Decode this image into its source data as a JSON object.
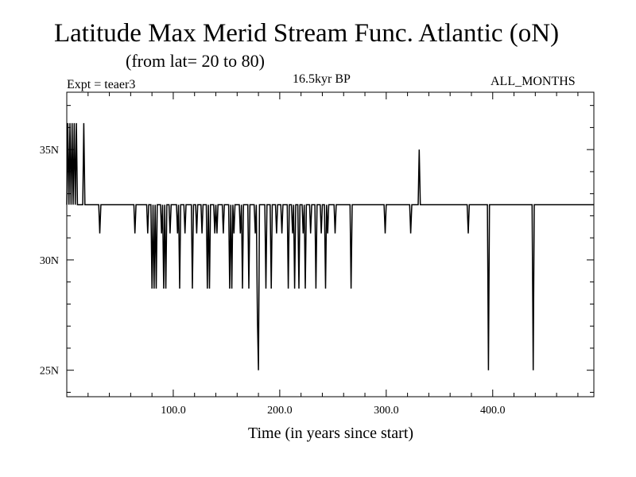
{
  "header": {
    "title": "Latitude Max Merid Stream Func. Atlantic (oN)",
    "subtitle": "(from lat= 20 to 80)",
    "expt_label": "Expt = teaer3",
    "period_label": "16.5kyr BP",
    "months_label": "ALL_MONTHS"
  },
  "chart_data": {
    "type": "line",
    "title": "Latitude Max Merid Stream Func. Atlantic (oN)",
    "subtitle": "(from lat= 20 to 80)",
    "xlabel": "Time (in years since start)",
    "ylabel": "",
    "xlim": [
      0,
      495
    ],
    "ylim": [
      23.8,
      37.6
    ],
    "x_ticks": [
      100,
      200,
      300,
      400
    ],
    "x_tick_labels": [
      "100.0",
      "200.0",
      "300.0",
      "400.0"
    ],
    "y_ticks": [
      25,
      30,
      35
    ],
    "y_tick_labels": [
      "25N",
      "30N",
      "35N"
    ],
    "baseline": 32.5,
    "series": [
      {
        "name": "max_merid_stream_lat",
        "points": [
          [
            0,
            32.5
          ],
          [
            1,
            36.2
          ],
          [
            2,
            32.5
          ],
          [
            3,
            36.2
          ],
          [
            4,
            32.5
          ],
          [
            5,
            36.2
          ],
          [
            6,
            32.5
          ],
          [
            7,
            36.2
          ],
          [
            8,
            32.5
          ],
          [
            9,
            36.2
          ],
          [
            10,
            32.5
          ],
          [
            15,
            32.5
          ],
          [
            16,
            36.2
          ],
          [
            17,
            32.5
          ],
          [
            30,
            32.5
          ],
          [
            31,
            31.2
          ],
          [
            32,
            32.5
          ],
          [
            63,
            32.5
          ],
          [
            64,
            31.2
          ],
          [
            65,
            32.5
          ],
          [
            75,
            32.5
          ],
          [
            76,
            31.2
          ],
          [
            77,
            32.5
          ],
          [
            79,
            32.5
          ],
          [
            80,
            28.7
          ],
          [
            81,
            32.5
          ],
          [
            82,
            28.7
          ],
          [
            83,
            32.5
          ],
          [
            84,
            28.7
          ],
          [
            85,
            32.5
          ],
          [
            88,
            32.5
          ],
          [
            89,
            31.2
          ],
          [
            90,
            32.5
          ],
          [
            91,
            28.7
          ],
          [
            92,
            32.5
          ],
          [
            93,
            28.7
          ],
          [
            94,
            32.5
          ],
          [
            96,
            32.5
          ],
          [
            97,
            31.2
          ],
          [
            98,
            32.5
          ],
          [
            103,
            32.5
          ],
          [
            104,
            31.2
          ],
          [
            105,
            32.5
          ],
          [
            106,
            28.7
          ],
          [
            107,
            32.5
          ],
          [
            110,
            32.5
          ],
          [
            111,
            31.2
          ],
          [
            112,
            32.5
          ],
          [
            117,
            32.5
          ],
          [
            118,
            28.7
          ],
          [
            119,
            32.5
          ],
          [
            121,
            32.5
          ],
          [
            122,
            31.2
          ],
          [
            123,
            32.5
          ],
          [
            126,
            32.5
          ],
          [
            127,
            31.2
          ],
          [
            128,
            32.5
          ],
          [
            131,
            32.5
          ],
          [
            132,
            28.7
          ],
          [
            133,
            32.5
          ],
          [
            134,
            28.7
          ],
          [
            135,
            32.5
          ],
          [
            138,
            32.5
          ],
          [
            139,
            31.2
          ],
          [
            140,
            32.5
          ],
          [
            141,
            31.2
          ],
          [
            142,
            32.5
          ],
          [
            146,
            32.5
          ],
          [
            147,
            31.2
          ],
          [
            148,
            32.5
          ],
          [
            152,
            32.5
          ],
          [
            153,
            28.7
          ],
          [
            154,
            32.5
          ],
          [
            155,
            28.7
          ],
          [
            156,
            32.5
          ],
          [
            157,
            31.2
          ],
          [
            158,
            32.5
          ],
          [
            162,
            32.5
          ],
          [
            163,
            31.2
          ],
          [
            164,
            32.5
          ],
          [
            165,
            28.7
          ],
          [
            166,
            32.5
          ],
          [
            170,
            32.5
          ],
          [
            171,
            28.7
          ],
          [
            172,
            32.5
          ],
          [
            176,
            32.5
          ],
          [
            177,
            31.2
          ],
          [
            178,
            32.5
          ],
          [
            179,
            27.3
          ],
          [
            180,
            25.0
          ],
          [
            181,
            32.5
          ],
          [
            186,
            32.5
          ],
          [
            187,
            28.7
          ],
          [
            188,
            32.5
          ],
          [
            191,
            32.5
          ],
          [
            192,
            28.7
          ],
          [
            193,
            32.5
          ],
          [
            196,
            32.5
          ],
          [
            197,
            31.2
          ],
          [
            198,
            32.5
          ],
          [
            201,
            32.5
          ],
          [
            202,
            31.2
          ],
          [
            203,
            32.5
          ],
          [
            207,
            32.5
          ],
          [
            208,
            28.7
          ],
          [
            209,
            32.5
          ],
          [
            211,
            32.5
          ],
          [
            212,
            31.2
          ],
          [
            213,
            32.5
          ],
          [
            214,
            28.7
          ],
          [
            215,
            32.5
          ],
          [
            217,
            32.5
          ],
          [
            218,
            28.7
          ],
          [
            219,
            32.5
          ],
          [
            221,
            32.5
          ],
          [
            222,
            31.2
          ],
          [
            223,
            32.5
          ],
          [
            224,
            28.7
          ],
          [
            225,
            32.5
          ],
          [
            228,
            32.5
          ],
          [
            229,
            31.2
          ],
          [
            230,
            32.5
          ],
          [
            233,
            32.5
          ],
          [
            234,
            28.7
          ],
          [
            235,
            32.5
          ],
          [
            238,
            32.5
          ],
          [
            239,
            31.2
          ],
          [
            240,
            32.5
          ],
          [
            242,
            32.5
          ],
          [
            243,
            28.7
          ],
          [
            244,
            32.5
          ],
          [
            245,
            31.2
          ],
          [
            246,
            32.5
          ],
          [
            251,
            32.5
          ],
          [
            252,
            31.2
          ],
          [
            253,
            32.5
          ],
          [
            266,
            32.5
          ],
          [
            267,
            28.7
          ],
          [
            268,
            32.5
          ],
          [
            298,
            32.5
          ],
          [
            299,
            31.2
          ],
          [
            300,
            32.5
          ],
          [
            322,
            32.5
          ],
          [
            323,
            31.2
          ],
          [
            324,
            32.5
          ],
          [
            330,
            32.5
          ],
          [
            331,
            35.0
          ],
          [
            332,
            32.5
          ],
          [
            376,
            32.5
          ],
          [
            377,
            31.2
          ],
          [
            378,
            32.5
          ],
          [
            395,
            32.5
          ],
          [
            396,
            25.0
          ],
          [
            397,
            32.5
          ],
          [
            437,
            32.5
          ],
          [
            438,
            25.0
          ],
          [
            439,
            32.5
          ],
          [
            495,
            32.5
          ]
        ]
      }
    ]
  }
}
